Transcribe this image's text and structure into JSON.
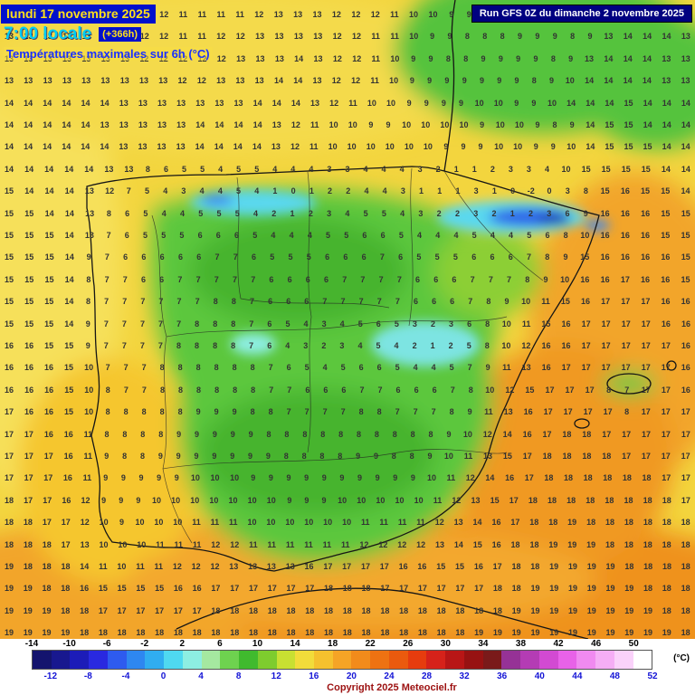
{
  "header": {
    "date_line": "lundi 17 novembre 2025",
    "time_line": "7:00 locale",
    "offset": "(+366h)",
    "subtitle": "Températures maximales sur 6h (°C)",
    "run_info": "Run GFS 0Z du dimanche 2 novembre 2025"
  },
  "footer": {
    "copyright": "Copyright 2025 Meteociel.fr",
    "unit": "(°C)"
  },
  "colorbar": {
    "min": -14,
    "max": 52,
    "step": 2,
    "colors": [
      "#14146e",
      "#18188f",
      "#1c1cb8",
      "#2929e0",
      "#2e5bef",
      "#2e87f0",
      "#30adf0",
      "#4fd9f0",
      "#8deee2",
      "#a5e8a0",
      "#6ed24f",
      "#40ba2e",
      "#7ecc2e",
      "#c8e032",
      "#f2dc3a",
      "#f5c12e",
      "#f5a426",
      "#f28b1b",
      "#ee7212",
      "#ea5a0e",
      "#e63c0e",
      "#d6221a",
      "#b81616",
      "#971212",
      "#7a1a1a",
      "#963296",
      "#b43cb4",
      "#d24ad2",
      "#e862e8",
      "#f08af0",
      "#f5aef5",
      "#fad2fa",
      "#ffffff"
    ],
    "top_labels": [
      -14,
      -10,
      -6,
      -2,
      2,
      6,
      10,
      14,
      18,
      22,
      26,
      30,
      34,
      38,
      42,
      46,
      50
    ],
    "bottom_labels": [
      -12,
      -8,
      -4,
      0,
      4,
      8,
      12,
      16,
      20,
      24,
      28,
      32,
      36,
      40,
      44,
      48,
      52
    ]
  },
  "grid": {
    "rows": [
      "13 13 13 12 13 13 12 12 12 11 11 11 11 12 13 13 13 12 12 12 11 10 10 9 9 8 8 8 9 9 8 8 9 13 13 14 13",
      "13 13 13 13 13 13 12 12 12 11 11 12 12 13 13 13 13 12 12 11 11 10 9 9 8 8 8 9 9 9 8 9 13 14 14 14 13",
      "13 13 13 13 13 13 13 12 12 12 12 12 13 13 13 14 13 12 12 11 10 9 9 8 8 9 9 9 9 8 9 13 14 14 14 13 13",
      "13 13 13 13 13 13 13 13 13 12 12 13 13 13 14 14 13 12 12 11 10 9 9 9 9 9 9 9 8 9 10 14 14 14 14 13 13",
      "14 14 14 14 14 14 13 13 13 13 13 13 13 14 14 14 13 12 11 10 10 9 9 9 9 10 10 9 9 10 14 14 14 15 14 14 14",
      "14 14 14 14 14 13 13 13 13 13 14 14 14 14 13 12 11 10 10 9 9 10 10 10 10 9 10 10 9 8 9 14 15 15 14 14 14",
      "14 14 14 14 14 14 13 13 13 13 14 14 14 14 13 12 11 10 10 10 10 10 10 9 9 9 10 10 9 9 10 14 15 15 15 14 14",
      "14 14 14 14 14 13 13 8 6 5 5 4 5 5 4 4 4 3 3 4 4 4 3 2 1 1 2 3 3 4 10 15 15 15 15 14 14",
      "15 14 14 14 13 12 7 5 4 3 4 4 5 4 1 0 1 2 2 4 4 3 1 1 1 3 1 0 -2 0 3 8 15 16 15 15 14",
      "15 15 14 14 13 8 6 5 4 4 5 5 5 4 2 1 2 3 4 5 5 4 3 2 2 3 2 1 2 3 6 9 16 16 16 15 15",
      "15 15 15 14 13 7 6 5 5 5 6 6 6 5 4 4 4 5 5 6 6 5 4 4 4 5 4 4 5 6 8 10 16 16 16 15 15",
      "15 15 15 14 9 7 6 6 6 6 6 7 7 6 5 5 5 6 6 6 7 6 5 5 5 6 6 6 7 8 9 15 16 16 16 16 15",
      "15 15 15 14 8 7 7 6 6 7 7 7 7 7 6 6 6 6 7 7 7 7 6 6 6 7 7 7 8 9 10 16 16 17 16 16 15",
      "15 15 15 14 8 7 7 7 7 7 7 8 8 7 6 6 6 7 7 7 7 7 6 6 6 7 8 9 10 11 15 16 17 17 17 16 16",
      "15 15 15 14 9 7 7 7 7 7 8 8 8 7 6 5 4 3 4 5 6 5 3 2 3 6 8 10 11 15 16 17 17 17 17 16 16",
      "16 16 15 15 9 7 7 7 7 8 8 8 8 7 6 4 3 2 3 4 5 4 2 1 2 5 8 10 12 16 16 17 17 17 17 17 16",
      "16 16 16 15 10 7 7 7 8 8 8 8 8 8 7 6 5 4 5 6 6 5 4 4 5 7 9 11 13 16 17 17 17 17 17 17 16",
      "16 16 16 15 10 8 7 7 8 8 8 8 8 8 7 7 6 6 6 7 7 6 6 6 7 8 10 12 15 17 17 17 8 7 17 17 16",
      "17 16 16 15 10 8 8 8 8 8 9 9 9 8 8 7 7 7 7 8 8 7 7 7 8 9 11 13 16 17 17 17 17 8 17 17 17",
      "17 17 16 16 11 8 8 8 8 9 9 9 9 9 8 8 8 8 8 8 8 8 8 8 9 10 12 14 16 17 18 18 17 17 17 17 17",
      "17 17 17 16 11 9 8 8 9 9 9 9 9 9 9 8 8 8 8 9 9 8 8 9 10 11 13 15 17 18 18 18 18 17 17 17 17",
      "17 17 17 16 11 9 9 9 9 9 10 10 10 9 9 9 9 9 9 9 9 9 9 10 11 12 14 16 17 18 18 18 18 18 18 17 17",
      "18 17 17 16 12 9 9 9 10 10 10 10 10 10 10 9 9 9 10 10 10 10 10 11 12 13 15 17 18 18 18 18 18 18 18 18 17",
      "18 18 17 17 12 10 9 10 10 10 11 11 11 10 10 10 10 10 10 11 11 11 11 12 13 14 16 17 18 18 19 18 18 18 18 18 18",
      "18 18 18 17 13 10 10 10 11 11 11 12 12 11 11 11 11 11 11 12 12 12 12 13 14 15 16 18 18 19 19 19 18 18 18 18 18",
      "19 18 18 18 14 11 10 11 11 12 12 12 13 13 13 13 16 17 17 17 17 16 16 15 15 16 17 18 18 19 19 19 19 18 18 18 18",
      "19 19 18 18 16 15 15 15 15 16 16 17 17 17 17 17 17 18 18 18 17 17 17 17 17 17 18 18 19 19 19 19 19 19 18 18 18",
      "19 19 19 18 18 17 17 17 17 17 17 18 18 18 18 18 18 18 18 18 18 18 18 18 18 18 18 19 19 19 19 19 19 19 19 18 18",
      "19 19 19 19 18 18 18 18 18 18 18 18 18 18 18 18 18 18 18 18 18 18 18 18 18 19 19 19 19 19 19 19 19 19 19 19 18"
    ]
  }
}
